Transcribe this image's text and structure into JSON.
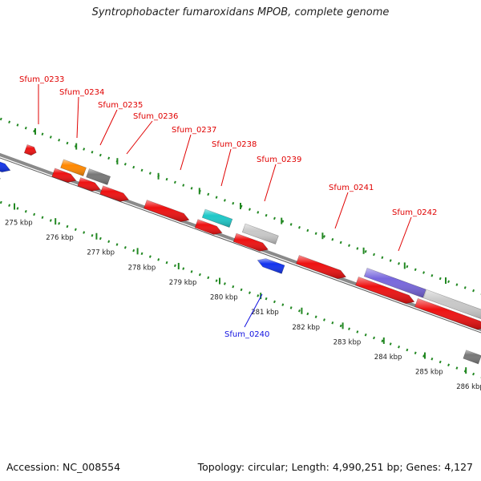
{
  "title": "Syntrophobacter fumaroxidans MPOB, complete genome",
  "footer": {
    "accession": "Accession: NC_008554",
    "summary": "Topology: circular; Length: 4,990,251 bp; Genes: 4,127"
  },
  "colors": {
    "red": "#ee1111",
    "orange": "#ff8800",
    "gray": "#777777",
    "light_gray": "#c8c8c8",
    "cyan": "#1ec8c8",
    "blue": "#1133ee",
    "purple": "#7766dd",
    "navy": "#101070",
    "backbone": "#8a8a8a",
    "dots": "#228822",
    "label_red": "#e00000",
    "label_blue": "#1010e0"
  },
  "ticks": [
    "275 kbp",
    "276 kbp",
    "277 kbp",
    "278 kbp",
    "279 kbp",
    "280 kbp",
    "281 kbp",
    "282 kbp",
    "283 kbp",
    "284 kbp",
    "285 kbp",
    "286 kbp"
  ],
  "gene_labels": [
    {
      "text": "Sfum_0233",
      "color": "red"
    },
    {
      "text": "Sfum_0234",
      "color": "red"
    },
    {
      "text": "Sfum_0235",
      "color": "red"
    },
    {
      "text": "Sfum_0236",
      "color": "red"
    },
    {
      "text": "Sfum_0237",
      "color": "red"
    },
    {
      "text": "Sfum_0238",
      "color": "red"
    },
    {
      "text": "Sfum_0239",
      "color": "red"
    },
    {
      "text": "Sfum_0241",
      "color": "red"
    },
    {
      "text": "Sfum_0242",
      "color": "red"
    },
    {
      "text": "Sfum_0240",
      "color": "blue"
    }
  ]
}
